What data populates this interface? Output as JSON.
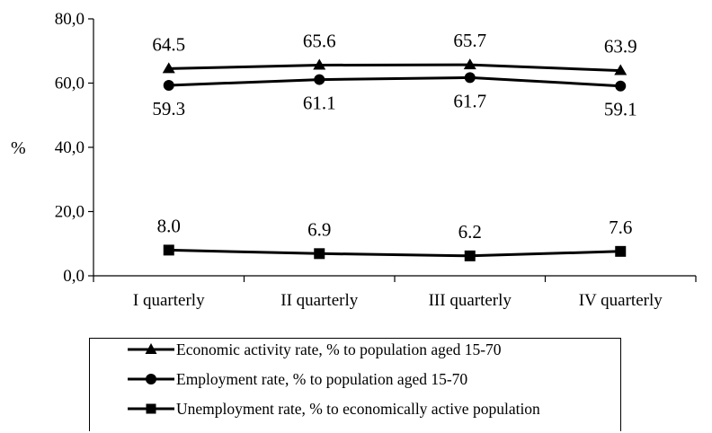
{
  "chart_data": {
    "type": "line",
    "categories": [
      "I quarterly",
      "II quarterly",
      "III quarterly",
      "IV quarterly"
    ],
    "ylabel": "%",
    "ylim": [
      0,
      80
    ],
    "yticks": [
      "0,0",
      "20,0",
      "40,0",
      "60,0",
      "80,0"
    ],
    "grid": false,
    "legend_position": "bottom",
    "series": [
      {
        "name": "Economic activity rate, % to population aged 15-70",
        "marker": "triangle",
        "label_position": "above",
        "values": [
          64.5,
          65.6,
          65.7,
          63.9
        ],
        "labels": [
          "64.5",
          "65.6",
          "65.7",
          "63.9"
        ]
      },
      {
        "name": "Employment rate, % to population aged 15-70",
        "marker": "circle",
        "label_position": "below",
        "values": [
          59.3,
          61.1,
          61.7,
          59.1
        ],
        "labels": [
          "59.3",
          "61.1",
          "61.7",
          "59.1"
        ]
      },
      {
        "name": "Unemployment rate, % to economically active population",
        "marker": "square",
        "label_position": "above",
        "values": [
          8.0,
          6.9,
          6.2,
          7.6
        ],
        "labels": [
          "8.0",
          "6.9",
          "6.2",
          "7.6"
        ]
      }
    ]
  },
  "colors": {
    "line": "#000000",
    "background": "#ffffff"
  }
}
